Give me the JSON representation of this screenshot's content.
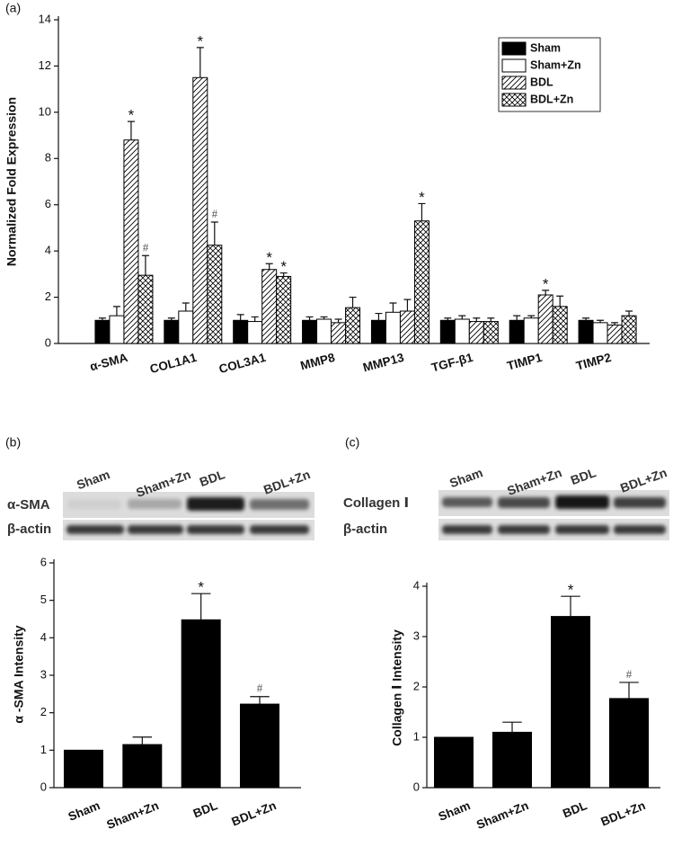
{
  "chart_data": [
    {
      "type": "bar",
      "panel_label": "(a)",
      "y_label": "Normalized Fold Expression",
      "categories": [
        "α-SMA",
        "COL1A1",
        "COL3A1",
        "MMP8",
        "MMP13",
        "TGF-β1",
        "TIMP1",
        "TIMP2"
      ],
      "series": [
        {
          "name": "Sham",
          "color": "#000000",
          "pattern": "solid",
          "values": [
            1.0,
            1.0,
            1.0,
            1.0,
            1.0,
            1.0,
            1.0,
            1.0
          ],
          "errors": [
            0.1,
            0.1,
            0.25,
            0.15,
            0.3,
            0.1,
            0.2,
            0.1
          ],
          "annotations": [
            null,
            null,
            null,
            null,
            null,
            null,
            null,
            null
          ]
        },
        {
          "name": "Sham+Zn",
          "color": "#ffffff",
          "pattern": "solid",
          "values": [
            1.2,
            1.4,
            0.95,
            1.05,
            1.35,
            1.05,
            1.1,
            0.9
          ],
          "errors": [
            0.4,
            0.35,
            0.2,
            0.1,
            0.4,
            0.15,
            0.1,
            0.1
          ],
          "annotations": [
            null,
            null,
            null,
            null,
            null,
            null,
            null,
            null
          ]
        },
        {
          "name": "BDL",
          "color": "#000000",
          "pattern": "hatch",
          "values": [
            8.8,
            11.5,
            3.2,
            0.9,
            1.4,
            0.95,
            2.1,
            0.8
          ],
          "errors": [
            0.8,
            1.3,
            0.25,
            0.15,
            0.5,
            0.15,
            0.2,
            0.1
          ],
          "annotations": [
            "*",
            "*",
            "*",
            null,
            null,
            null,
            "*",
            null
          ]
        },
        {
          "name": "BDL+Zn",
          "color": "#000000",
          "pattern": "crosshatch",
          "values": [
            2.95,
            4.25,
            2.9,
            1.55,
            5.3,
            0.95,
            1.6,
            1.2
          ],
          "errors": [
            0.85,
            1.0,
            0.15,
            0.45,
            0.75,
            0.15,
            0.45,
            0.2
          ],
          "annotations": [
            "#",
            "#",
            "*",
            null,
            "*",
            null,
            null,
            null
          ]
        }
      ],
      "ylim": [
        0,
        14
      ],
      "yticks": [
        0,
        2,
        4,
        6,
        8,
        10,
        12,
        14
      ],
      "legend": "upper right"
    },
    {
      "type": "bar",
      "panel_label": "(b)",
      "blot": {
        "lanes": [
          "Sham",
          "Sham+Zn",
          "BDL",
          "BDL+Zn"
        ],
        "rows": [
          "α-SMA",
          "β-actin"
        ]
      },
      "y_label": "α -SMA Intensity",
      "categories": [
        "Sham",
        "Sham+Zn",
        "BDL",
        "BDL+Zn"
      ],
      "series": [
        {
          "color": "#000000",
          "pattern": "solid",
          "values": [
            1.0,
            1.15,
            4.48,
            2.23
          ],
          "errors": [
            null,
            0.2,
            0.7,
            0.2
          ],
          "annotations": [
            null,
            null,
            "*",
            "#"
          ]
        }
      ],
      "ylim": [
        0,
        6
      ],
      "yticks": [
        0,
        1,
        2,
        3,
        4,
        5,
        6
      ]
    },
    {
      "type": "bar",
      "panel_label": "(c)",
      "blot": {
        "lanes": [
          "Sham",
          "Sham+Zn",
          "BDL",
          "BDL+Zn"
        ],
        "rows": [
          "Collagen Ⅰ",
          "β-actin"
        ]
      },
      "y_label": "Collagen Ⅰ Intensity",
      "categories": [
        "Sham",
        "Sham+Zn",
        "BDL",
        "BDL+Zn"
      ],
      "series": [
        {
          "color": "#000000",
          "pattern": "solid",
          "values": [
            1.0,
            1.1,
            3.4,
            1.77
          ],
          "errors": [
            null,
            0.2,
            0.4,
            0.32
          ],
          "annotations": [
            null,
            null,
            "*",
            "#"
          ]
        }
      ],
      "ylim": [
        0,
        4
      ],
      "yticks": [
        0,
        1,
        2,
        3,
        4
      ]
    }
  ]
}
